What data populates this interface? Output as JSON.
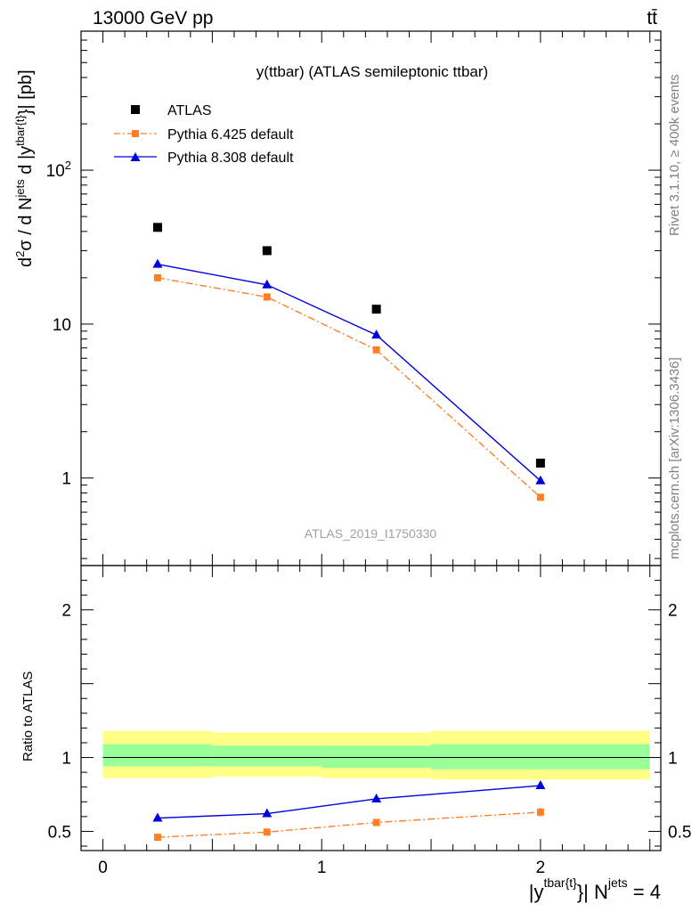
{
  "chart_data": {
    "type": "line",
    "header_left": "13000 GeV pp",
    "header_right": "tt̄",
    "title": "y(ttbar) (ATLAS semileptonic ttbar)",
    "watermark": "ATLAS_2019_I1750330",
    "side_text_upper": "Rivet 3.1.10, ≥ 400k events",
    "side_text_lower": "mcplots.cern.ch [arXiv:1306.3436]",
    "ylabel_top": "d²σ / d N^jets d |y^tbar{t}| [pb]",
    "ylabel_bottom": "Ratio to ATLAS",
    "xlabel": "|y^tbar{t}| N^jets = 4",
    "x": [
      0.25,
      0.75,
      1.25,
      2.0
    ],
    "xlim": [
      -0.1,
      2.55
    ],
    "top": {
      "yscale": "log",
      "ylim": [
        0.27,
        800
      ],
      "yticks": [
        {
          "v": 1,
          "label": "1"
        },
        {
          "v": 10,
          "label": "10"
        },
        {
          "v": 100,
          "label": "10²"
        }
      ]
    },
    "bottom": {
      "ylim": [
        0.37,
        2.3
      ],
      "yticks": [
        {
          "v": 0.5,
          "label": "0.5"
        },
        {
          "v": 1,
          "label": "1"
        },
        {
          "v": 2,
          "label": "2"
        }
      ]
    },
    "xticks": [
      {
        "v": 0,
        "label": "0"
      },
      {
        "v": 1,
        "label": "1"
      },
      {
        "v": 2,
        "label": "2"
      }
    ],
    "data_series": {
      "name": "ATLAS",
      "color": "#000000",
      "values": [
        42.5,
        30.0,
        12.5,
        1.25
      ]
    },
    "series": [
      {
        "name": "Pythia 6.425 default",
        "color": "#ff7f27",
        "style": "dashdot",
        "marker": "square",
        "values": [
          20.0,
          15.0,
          6.8,
          0.75
        ],
        "ratio": [
          0.46,
          0.495,
          0.56,
          0.63
        ]
      },
      {
        "name": "Pythia 8.308 default",
        "color": "#0000dd",
        "style": "solid",
        "marker": "triangle",
        "values": [
          24.5,
          18.0,
          8.5,
          0.96
        ],
        "ratio": [
          0.59,
          0.62,
          0.72,
          0.81
        ]
      }
    ],
    "uncertainty_bands": [
      {
        "x0": 0.0,
        "x1": 0.5,
        "stat_lo": 0.94,
        "stat_hi": 1.09,
        "tot_lo": 0.86,
        "tot_hi": 1.18
      },
      {
        "x0": 0.5,
        "x1": 1.0,
        "stat_lo": 0.94,
        "stat_hi": 1.08,
        "tot_lo": 0.87,
        "tot_hi": 1.17
      },
      {
        "x0": 1.0,
        "x1": 1.5,
        "stat_lo": 0.93,
        "stat_hi": 1.08,
        "tot_lo": 0.86,
        "tot_hi": 1.17
      },
      {
        "x0": 1.5,
        "x1": 2.5,
        "stat_lo": 0.92,
        "stat_hi": 1.09,
        "tot_lo": 0.85,
        "tot_hi": 1.18
      }
    ],
    "colors": {
      "stat_band": "#99ff99",
      "total_band": "#ffff88"
    }
  }
}
